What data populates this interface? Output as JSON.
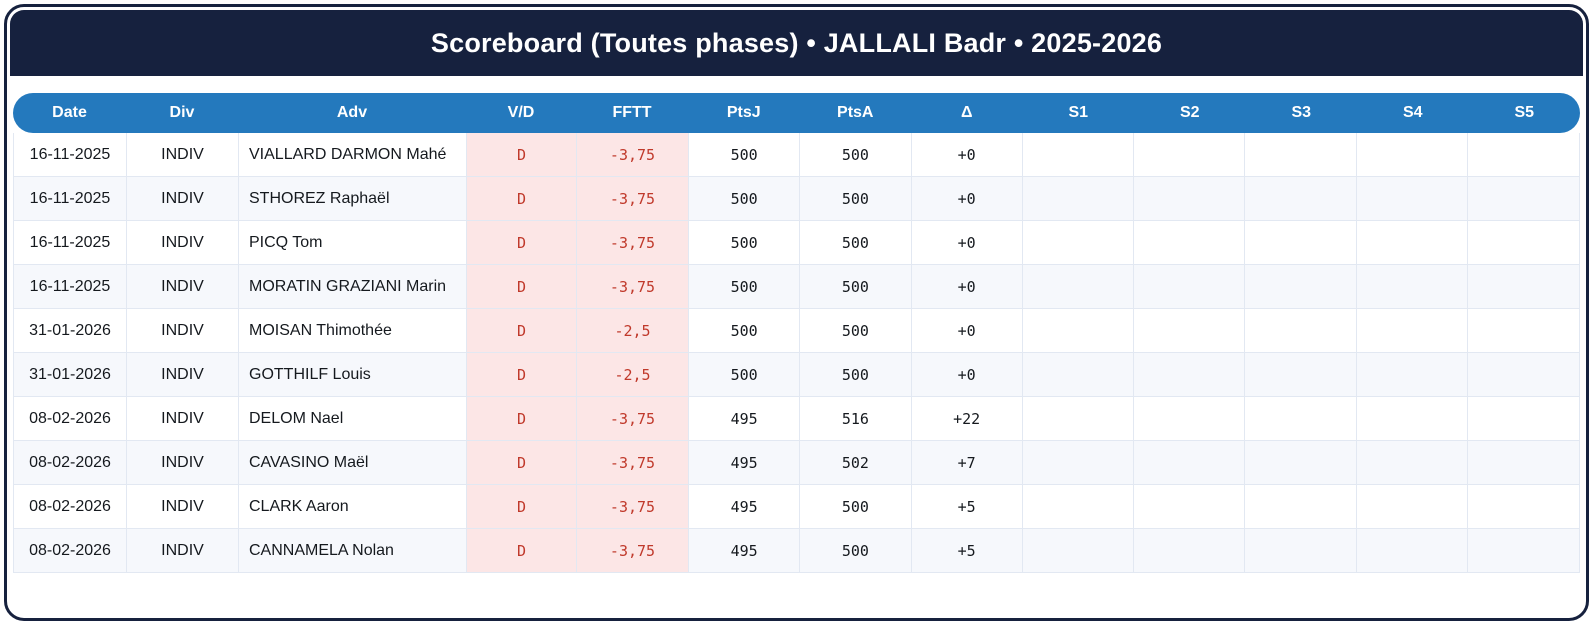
{
  "title": "Scoreboard (Toutes phases) • JALLALI Badr • 2025-2026",
  "colors": {
    "frame_navy": "#16213e",
    "header_blue": "#2479bd",
    "result_pink_bg": "#fce6e6",
    "result_red_text": "#c0392b",
    "row_alt": "#f6f8fc",
    "grid_line": "#e2e8f2"
  },
  "table": {
    "columns": [
      {
        "key": "date",
        "label": "Date"
      },
      {
        "key": "div",
        "label": "Div"
      },
      {
        "key": "adv",
        "label": "Adv"
      },
      {
        "key": "vd",
        "label": "V/D"
      },
      {
        "key": "fftt",
        "label": "FFTT"
      },
      {
        "key": "ptsj",
        "label": "PtsJ"
      },
      {
        "key": "ptsa",
        "label": "PtsA"
      },
      {
        "key": "delta",
        "label": "Δ"
      },
      {
        "key": "s1",
        "label": "S1"
      },
      {
        "key": "s2",
        "label": "S2"
      },
      {
        "key": "s3",
        "label": "S3"
      },
      {
        "key": "s4",
        "label": "S4"
      },
      {
        "key": "s5",
        "label": "S5"
      }
    ],
    "rows": [
      {
        "date": "16-11-2025",
        "div": "INDIV",
        "adv": "VIALLARD DARMON Mahé",
        "vd": "D",
        "fftt": "-3,75",
        "ptsj": "500",
        "ptsa": "500",
        "delta": "+0",
        "s1": "",
        "s2": "",
        "s3": "",
        "s4": "",
        "s5": ""
      },
      {
        "date": "16-11-2025",
        "div": "INDIV",
        "adv": "STHOREZ Raphaël",
        "vd": "D",
        "fftt": "-3,75",
        "ptsj": "500",
        "ptsa": "500",
        "delta": "+0",
        "s1": "",
        "s2": "",
        "s3": "",
        "s4": "",
        "s5": ""
      },
      {
        "date": "16-11-2025",
        "div": "INDIV",
        "adv": "PICQ Tom",
        "vd": "D",
        "fftt": "-3,75",
        "ptsj": "500",
        "ptsa": "500",
        "delta": "+0",
        "s1": "",
        "s2": "",
        "s3": "",
        "s4": "",
        "s5": ""
      },
      {
        "date": "16-11-2025",
        "div": "INDIV",
        "adv": "MORATIN GRAZIANI Marin",
        "vd": "D",
        "fftt": "-3,75",
        "ptsj": "500",
        "ptsa": "500",
        "delta": "+0",
        "s1": "",
        "s2": "",
        "s3": "",
        "s4": "",
        "s5": ""
      },
      {
        "date": "31-01-2026",
        "div": "INDIV",
        "adv": "MOISAN Thimothée",
        "vd": "D",
        "fftt": "-2,5",
        "ptsj": "500",
        "ptsa": "500",
        "delta": "+0",
        "s1": "",
        "s2": "",
        "s3": "",
        "s4": "",
        "s5": ""
      },
      {
        "date": "31-01-2026",
        "div": "INDIV",
        "adv": "GOTTHILF Louis",
        "vd": "D",
        "fftt": "-2,5",
        "ptsj": "500",
        "ptsa": "500",
        "delta": "+0",
        "s1": "",
        "s2": "",
        "s3": "",
        "s4": "",
        "s5": ""
      },
      {
        "date": "08-02-2026",
        "div": "INDIV",
        "adv": "DELOM Nael",
        "vd": "D",
        "fftt": "-3,75",
        "ptsj": "495",
        "ptsa": "516",
        "delta": "+22",
        "s1": "",
        "s2": "",
        "s3": "",
        "s4": "",
        "s5": ""
      },
      {
        "date": "08-02-2026",
        "div": "INDIV",
        "adv": "CAVASINO Maël",
        "vd": "D",
        "fftt": "-3,75",
        "ptsj": "495",
        "ptsa": "502",
        "delta": "+7",
        "s1": "",
        "s2": "",
        "s3": "",
        "s4": "",
        "s5": ""
      },
      {
        "date": "08-02-2026",
        "div": "INDIV",
        "adv": "CLARK Aaron",
        "vd": "D",
        "fftt": "-3,75",
        "ptsj": "495",
        "ptsa": "500",
        "delta": "+5",
        "s1": "",
        "s2": "",
        "s3": "",
        "s4": "",
        "s5": ""
      },
      {
        "date": "08-02-2026",
        "div": "INDIV",
        "adv": "CANNAMELA Nolan",
        "vd": "D",
        "fftt": "-3,75",
        "ptsj": "495",
        "ptsa": "500",
        "delta": "+5",
        "s1": "",
        "s2": "",
        "s3": "",
        "s4": "",
        "s5": ""
      }
    ]
  }
}
